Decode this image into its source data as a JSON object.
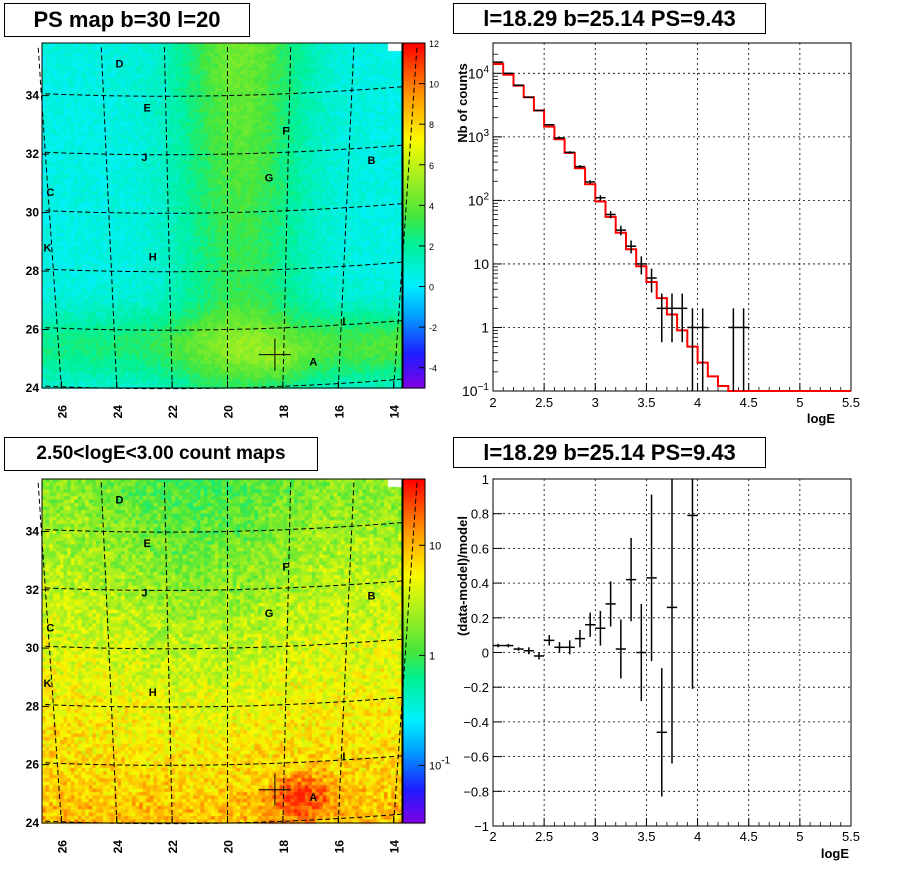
{
  "chart_data": [
    {
      "type": "heatmap",
      "title": "PS map b=30 l=20",
      "x_ticks": [
        "26",
        "24",
        "22",
        "20",
        "18",
        "16",
        "14"
      ],
      "y_ticks": [
        "24",
        "26",
        "28",
        "30",
        "32",
        "34"
      ],
      "colorbar_ticks": [
        "-4",
        "-2",
        "0",
        "2",
        "4",
        "6",
        "8",
        "10",
        "12"
      ],
      "zlim": [
        -5,
        12
      ],
      "marker": {
        "l": 18.29,
        "b": 25.14
      },
      "labels": [
        {
          "text": "D",
          "l": 23.9,
          "b": 35.1
        },
        {
          "text": "E",
          "l": 22.9,
          "b": 33.6
        },
        {
          "text": "F",
          "l": 17.9,
          "b": 32.8
        },
        {
          "text": "J",
          "l": 23.0,
          "b": 31.9
        },
        {
          "text": "B",
          "l": 14.8,
          "b": 31.8
        },
        {
          "text": "G",
          "l": 18.5,
          "b": 31.2
        },
        {
          "text": "C",
          "l": 26.4,
          "b": 30.7
        },
        {
          "text": "K",
          "l": 26.5,
          "b": 28.8
        },
        {
          "text": "H",
          "l": 22.7,
          "b": 28.5
        },
        {
          "text": "I",
          "l": 15.8,
          "b": 26.3
        },
        {
          "text": "A",
          "l": 16.9,
          "b": 24.9
        }
      ]
    },
    {
      "type": "line",
      "title": "l=18.29 b=25.14 PS=9.43",
      "xlabel": "logE",
      "ylabel": "Nb of counts",
      "xlim": [
        2,
        5.5
      ],
      "ylim": [
        0.1,
        30000
      ],
      "ylog": true,
      "x_ticks": [
        "2",
        "2.5",
        "3",
        "3.5",
        "4",
        "4.5",
        "5",
        "5.5"
      ],
      "y_ticks": [
        {
          "v": 0.1,
          "base": "10",
          "exp": "−1"
        },
        {
          "v": 1,
          "base": "1",
          "exp": ""
        },
        {
          "v": 10,
          "base": "10",
          "exp": ""
        },
        {
          "v": 100,
          "base": "10",
          "exp": "2"
        },
        {
          "v": 1000,
          "base": "10",
          "exp": "3"
        },
        {
          "v": 10000,
          "base": "10",
          "exp": "4"
        }
      ],
      "bin_width": 0.1,
      "series": [
        {
          "role": "data",
          "color": "#000000",
          "x": [
            2.05,
            2.15,
            2.25,
            2.35,
            2.45,
            2.55,
            2.65,
            2.75,
            2.85,
            2.95,
            3.05,
            3.15,
            3.25,
            3.35,
            3.45,
            3.55,
            3.65,
            3.75,
            3.85,
            3.95,
            4.05,
            4.35,
            4.45
          ],
          "y": [
            15000,
            10000,
            6500,
            4200,
            2600,
            1550,
            960,
            570,
            340,
            195,
            110,
            60,
            34,
            19,
            10,
            6,
            2,
            2,
            2,
            1,
            1,
            1,
            1
          ]
        },
        {
          "role": "model",
          "color": "#ff0000",
          "x": [
            2.0,
            2.1,
            2.2,
            2.3,
            2.4,
            2.5,
            2.6,
            2.7,
            2.8,
            2.9,
            3.0,
            3.1,
            3.2,
            3.3,
            3.4,
            3.5,
            3.6,
            3.7,
            3.8,
            3.9,
            4.0,
            4.1,
            4.2,
            4.3,
            4.4,
            4.5,
            4.6,
            4.7,
            4.8,
            4.9,
            5.0,
            5.1,
            5.2,
            5.3,
            5.4
          ],
          "y": [
            14000,
            9500,
            6400,
            4200,
            2600,
            1450,
            920,
            560,
            320,
            180,
            96,
            55,
            31,
            17,
            9.2,
            5.2,
            2.9,
            1.6,
            0.9,
            0.5,
            0.28,
            0.17,
            0.12,
            0.1,
            0.1,
            0.1,
            0.1,
            0.1,
            0.1,
            0.1,
            0.1,
            0.1,
            0.1,
            0.1,
            0.1
          ]
        }
      ]
    },
    {
      "type": "heatmap",
      "title": "2.50<logE<3.00 count maps",
      "x_ticks": [
        "26",
        "24",
        "22",
        "20",
        "18",
        "16",
        "14"
      ],
      "y_ticks": [
        "24",
        "26",
        "28",
        "30",
        "32",
        "34"
      ],
      "colorbar_ticks": [
        {
          "v": 0.1,
          "base": "10",
          "exp": "-1"
        },
        {
          "v": 1,
          "base": "1",
          "exp": ""
        },
        {
          "v": 10,
          "base": "10",
          "exp": ""
        }
      ],
      "zlim": [
        0.03,
        40
      ],
      "zlog": true,
      "marker": {
        "l": 18.29,
        "b": 25.14
      },
      "labels": [
        {
          "text": "D",
          "l": 23.9,
          "b": 35.1
        },
        {
          "text": "E",
          "l": 22.9,
          "b": 33.6
        },
        {
          "text": "F",
          "l": 17.9,
          "b": 32.8
        },
        {
          "text": "J",
          "l": 23.0,
          "b": 31.9
        },
        {
          "text": "B",
          "l": 14.8,
          "b": 31.8
        },
        {
          "text": "G",
          "l": 18.5,
          "b": 31.2
        },
        {
          "text": "C",
          "l": 26.4,
          "b": 30.7
        },
        {
          "text": "K",
          "l": 26.5,
          "b": 28.8
        },
        {
          "text": "H",
          "l": 22.7,
          "b": 28.5
        },
        {
          "text": "I",
          "l": 15.8,
          "b": 26.3
        },
        {
          "text": "A",
          "l": 16.9,
          "b": 24.9
        }
      ]
    },
    {
      "type": "scatter",
      "title": "l=18.29 b=25.14 PS=9.43",
      "xlabel": "logE",
      "ylabel": "(data-model)/model",
      "xlim": [
        2,
        5.5
      ],
      "ylim": [
        -1,
        1
      ],
      "x_ticks": [
        "2",
        "2.5",
        "3",
        "3.5",
        "4",
        "4.5",
        "5",
        "5.5"
      ],
      "y_ticks": [
        "−1",
        "−0.8",
        "−0.6",
        "−0.4",
        "−0.2",
        "0",
        "0.2",
        "0.4",
        "0.6",
        "0.8",
        "1"
      ],
      "bin_width": 0.1,
      "series": [
        {
          "role": "residual",
          "color": "#000000",
          "x": [
            2.05,
            2.15,
            2.25,
            2.35,
            2.45,
            2.55,
            2.65,
            2.75,
            2.85,
            2.95,
            3.05,
            3.15,
            3.25,
            3.35,
            3.45,
            3.55,
            3.65,
            3.75,
            3.95
          ],
          "y": [
            0.04,
            0.04,
            0.02,
            0.01,
            -0.02,
            0.07,
            0.03,
            0.03,
            0.08,
            0.16,
            0.14,
            0.28,
            0.02,
            0.42,
            0.0,
            0.43,
            -0.46,
            0.26,
            0.79
          ],
          "err": [
            0.01,
            0.01,
            0.01,
            0.02,
            0.02,
            0.03,
            0.03,
            0.04,
            0.05,
            0.07,
            0.1,
            0.13,
            0.17,
            0.24,
            0.28,
            0.48,
            0.37,
            0.9,
            1.0
          ]
        }
      ]
    }
  ],
  "colors": {
    "grid": "#000000",
    "model": "#ff0000",
    "frame": "#000000"
  }
}
